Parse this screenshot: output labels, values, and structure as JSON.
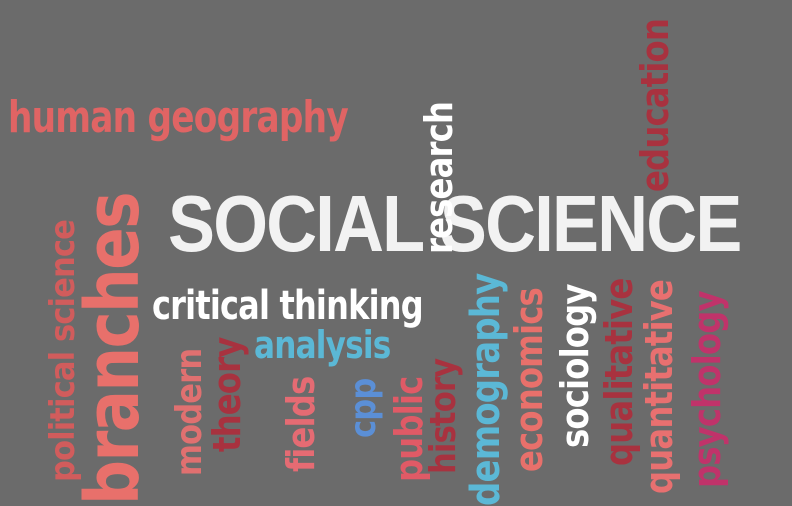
{
  "words": [
    {
      "key": "social_science",
      "text": "SOCIAL SCIENCE",
      "color": "#f2f2f2"
    },
    {
      "key": "human_geography",
      "text": "human geography",
      "color": "#e06464"
    },
    {
      "key": "critical_thinking",
      "text": "critical thinking",
      "color": "#ffffff"
    },
    {
      "key": "analysis",
      "text": "analysis",
      "color": "#5bb8d6"
    },
    {
      "key": "branches",
      "text": "branches",
      "color": "#e8706b"
    },
    {
      "key": "political_science",
      "text": "political science",
      "color": "#d15c5c"
    },
    {
      "key": "modern",
      "text": "modern",
      "color": "#e07070"
    },
    {
      "key": "theory",
      "text": "theory",
      "color": "#a8323f"
    },
    {
      "key": "fields",
      "text": "fields",
      "color": "#e56b73"
    },
    {
      "key": "cpp",
      "text": "cpp",
      "color": "#5b8fd6"
    },
    {
      "key": "public",
      "text": "public",
      "color": "#e05a66"
    },
    {
      "key": "research",
      "text": "research",
      "color": "#ffffff"
    },
    {
      "key": "history",
      "text": "history",
      "color": "#a8323f"
    },
    {
      "key": "demography",
      "text": "demography",
      "color": "#5bb8d6"
    },
    {
      "key": "economics",
      "text": "economics",
      "color": "#e8706b"
    },
    {
      "key": "sociology",
      "text": "sociology",
      "color": "#ffffff"
    },
    {
      "key": "qualitative",
      "text": "qualitative",
      "color": "#a8323f"
    },
    {
      "key": "quantitative",
      "text": "quantitative",
      "color": "#e87070"
    },
    {
      "key": "psychology",
      "text": "psychology",
      "color": "#c0336a"
    },
    {
      "key": "education",
      "text": "education",
      "color": "#a8323f"
    }
  ]
}
